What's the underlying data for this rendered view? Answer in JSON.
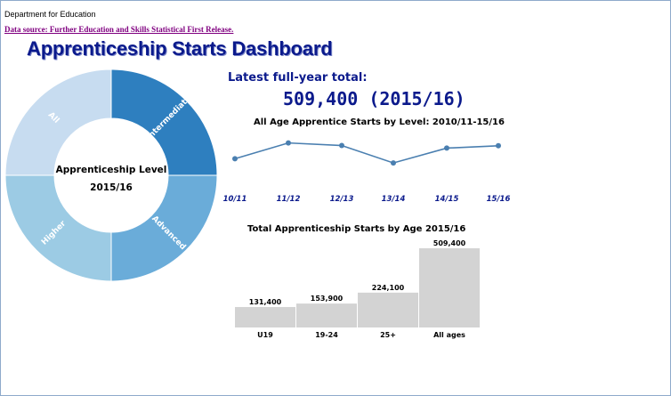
{
  "header": {
    "department": "Department for Education",
    "data_source_link": "Data source: Further Education and Skills Statistical First Release.",
    "dashboard_title": "Apprenticeship Starts Dashboard"
  },
  "latest": {
    "label": "Latest full-year total:",
    "value": "509,400 (2015/16)"
  },
  "colors": {
    "title": "#0b1a8c",
    "frame_border": "#8eaacb",
    "line": "#4a7fb0",
    "bar": "#d3d3d3",
    "link": "#800080"
  },
  "chart_data": [
    {
      "type": "pie",
      "variant": "donut",
      "center_label": "Apprenticeship Level",
      "center_sublabel": "2015/16",
      "slices": [
        {
          "label": "Intermediate",
          "value": 1,
          "color": "#2e7fbf"
        },
        {
          "label": "Advanced",
          "value": 1,
          "color": "#6aacd9"
        },
        {
          "label": "Higher",
          "value": 1,
          "color": "#9ccbe4"
        },
        {
          "label": "All",
          "value": 1,
          "color": "#c7dcf0"
        }
      ]
    },
    {
      "type": "line",
      "title": "All Age Apprentice Starts by Level: 2010/11-15/16",
      "categories": [
        "10/11",
        "11/12",
        "12/13",
        "13/14",
        "14/15",
        "15/16"
      ],
      "values": [
        457200,
        520600,
        510200,
        440400,
        499900,
        509400
      ],
      "ylim": [
        380000,
        580000
      ]
    },
    {
      "type": "bar",
      "title": "Total Apprenticeship Starts by Age 2015/16",
      "categories": [
        "U19",
        "19-24",
        "25+",
        "All ages"
      ],
      "values": [
        131400,
        153900,
        224100,
        509400
      ],
      "value_labels": [
        "131,400",
        "153,900",
        "224,100",
        "509,400"
      ],
      "ylim": [
        0,
        509400
      ]
    }
  ]
}
